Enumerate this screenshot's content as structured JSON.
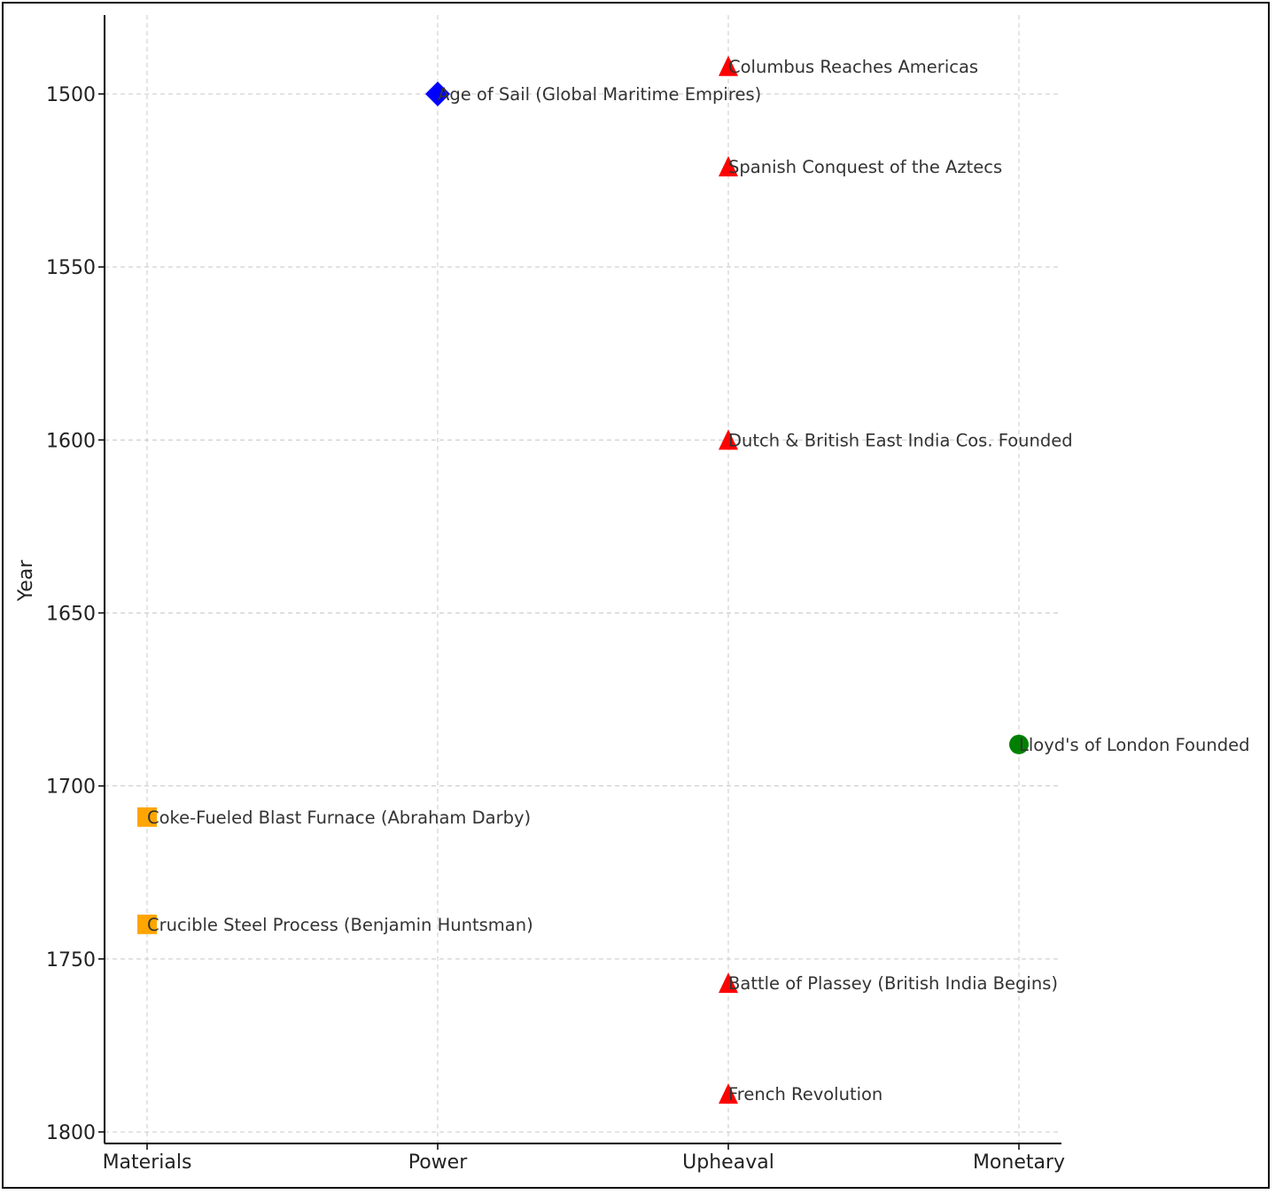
{
  "chart_data": {
    "type": "scatter",
    "ylabel": "Year",
    "xlabel": "",
    "categories": [
      "Materials",
      "Power",
      "Upheaval",
      "Monetary"
    ],
    "ylim": [
      1804,
      1477
    ],
    "y_inverted": true,
    "yticks": [
      1500,
      1550,
      1600,
      1650,
      1700,
      1750,
      1800
    ],
    "grid": true,
    "category_styles": {
      "Materials": {
        "marker": "square",
        "color": "#FFA500"
      },
      "Power": {
        "marker": "diamond",
        "color": "#0000FF"
      },
      "Upheaval": {
        "marker": "triangle",
        "color": "#FF0000"
      },
      "Monetary": {
        "marker": "circle",
        "color": "#008000"
      }
    },
    "points": [
      {
        "category": "Upheaval",
        "year": 1492,
        "label": "Columbus Reaches Americas"
      },
      {
        "category": "Power",
        "year": 1500,
        "label": "Age of Sail (Global Maritime Empires)"
      },
      {
        "category": "Upheaval",
        "year": 1521,
        "label": "Spanish Conquest of the Aztecs"
      },
      {
        "category": "Upheaval",
        "year": 1600,
        "label": "Dutch & British East India Cos. Founded"
      },
      {
        "category": "Monetary",
        "year": 1688,
        "label": "Lloyd's of London Founded"
      },
      {
        "category": "Materials",
        "year": 1709,
        "label": "Coke-Fueled Blast Furnace (Abraham Darby)"
      },
      {
        "category": "Materials",
        "year": 1740,
        "label": "Crucible Steel Process (Benjamin Huntsman)"
      },
      {
        "category": "Upheaval",
        "year": 1757,
        "label": "Battle of Plassey (British India Begins)"
      },
      {
        "category": "Upheaval",
        "year": 1789,
        "label": "French Revolution"
      }
    ]
  }
}
